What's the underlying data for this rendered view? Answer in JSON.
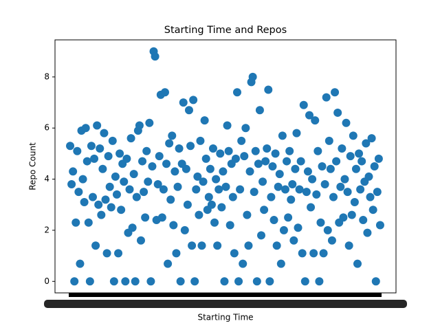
{
  "chart_data": {
    "type": "scatter",
    "title": "Starting Time and Repos",
    "x_label": "Starting Time",
    "y_label": "Repo Count",
    "color": "#1f77b4",
    "values": [
      5.3,
      3.8,
      4.3,
      0,
      2.3,
      5.1,
      3.5,
      0.69,
      5.9,
      4.0,
      3.1,
      6.0,
      4.7,
      2.3,
      0,
      5.3,
      3.3,
      4.8,
      1.4,
      6.1,
      3.0,
      5.2,
      2.6,
      4.4,
      5.8,
      3.2,
      1.1,
      4.9,
      3.7,
      2.9,
      5.5,
      0,
      4.1,
      3.4,
      1.1,
      5.0,
      2.8,
      4.6,
      3.9,
      0,
      4.8,
      1.9,
      3.6,
      5.6,
      2.1,
      4.2,
      0,
      3.3,
      5.9,
      6.1,
      1.6,
      4.7,
      3.5,
      2.5,
      5.1,
      3.9,
      6.2,
      0,
      4.5,
      9.0,
      8.8,
      2.4,
      3.8,
      4.9,
      7.3,
      2.5,
      3.6,
      7.4,
      4.6,
      0.69,
      5.4,
      3.2,
      5.7,
      2.2,
      4.3,
      1.1,
      3.7,
      5.2,
      0,
      4.6,
      7.0,
      2.0,
      4.4,
      3.0,
      6.7,
      5.3,
      1.4,
      7.1,
      0,
      3.6,
      4.1,
      2.6,
      5.5,
      1.4,
      3.9,
      6.3,
      4.8,
      2.8,
      3.3,
      4.4,
      3.0,
      5.2,
      2.3,
      4.0,
      1.4,
      3.6,
      5.0,
      2.9,
      4.3,
      0,
      3.7,
      6.1,
      5.1,
      2.2,
      4.6,
      3.3,
      1.1,
      4.8,
      7.4,
      0,
      3.6,
      5.5,
      0.69,
      4.9,
      6.0,
      2.6,
      1.4,
      4.3,
      7.8,
      8.0,
      3.5,
      5.1,
      0,
      4.6,
      6.7,
      1.8,
      3.9,
      2.8,
      4.7,
      5.2,
      7.5,
      0,
      3.3,
      4.5,
      2.4,
      5.0,
      1.4,
      3.7,
      4.2,
      0.69,
      5.7,
      2.0,
      3.6,
      4.7,
      2.5,
      5.1,
      3.2,
      3.8,
      1.6,
      4.4,
      5.8,
      2.1,
      3.6,
      4.7,
      1.1,
      6.9,
      0,
      3.5,
      4.3,
      6.5,
      2.9,
      4.0,
      1.1,
      6.3,
      3.4,
      5.1,
      0,
      2.3,
      4.5,
      1.1,
      3.8,
      7.2,
      2.0,
      5.5,
      4.4,
      1.6,
      3.3,
      7.4,
      4.7,
      6.6,
      2.3,
      3.7,
      5.2,
      2.5,
      4.0,
      6.2,
      3.5,
      1.4,
      4.9,
      2.6,
      5.7,
      3.1,
      4.4,
      0.69,
      5.0,
      3.6,
      4.7,
      2.4,
      3.9,
      5.4,
      1.9,
      4.1,
      3.3,
      5.6,
      2.8,
      4.5,
      0,
      3.5,
      4.8,
      2.2
    ],
    "xlim": [
      -10.7,
      230.2
    ],
    "ylim": [
      -0.45,
      9.45
    ],
    "yticks": [
      0,
      2,
      4,
      6,
      8
    ]
  }
}
